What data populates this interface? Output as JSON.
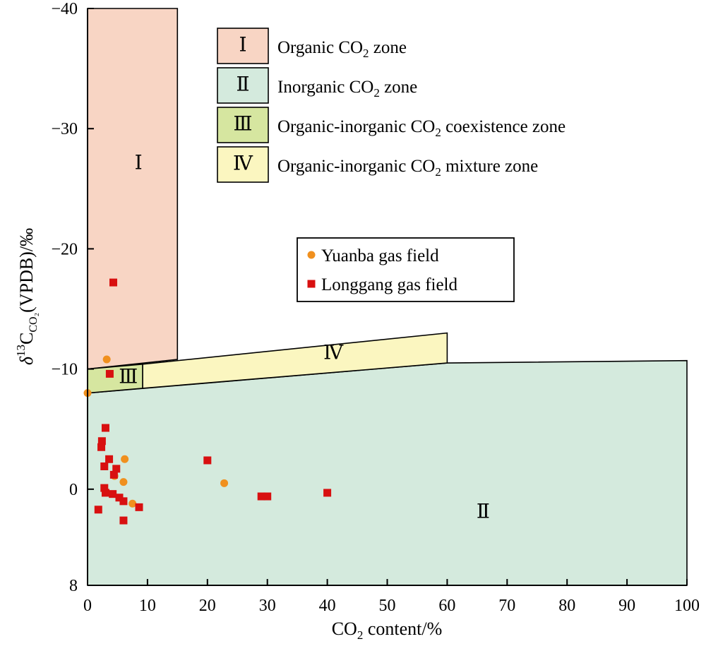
{
  "chart_data": {
    "type": "scatter",
    "xlabel": {
      "main": "CO",
      "sub": "2",
      "tail": " content/%"
    },
    "ylabel": {
      "delta": "δ",
      "sup": "13",
      "c": "C",
      "sub": "CO₂",
      "tail": "(VPDB)/‰"
    },
    "xlim": [
      0,
      100
    ],
    "ylim": [
      8,
      -40
    ],
    "y_inverted": true,
    "x_ticks": [
      0,
      10,
      20,
      30,
      40,
      50,
      60,
      70,
      80,
      90,
      100
    ],
    "y_ticks": [
      {
        "value": -40,
        "label": "−40"
      },
      {
        "value": -30,
        "label": "−30"
      },
      {
        "value": -20,
        "label": "−20"
      },
      {
        "value": -10,
        "label": "−10"
      },
      {
        "value": 0,
        "label": "0"
      },
      {
        "value": 8,
        "label": "8"
      }
    ],
    "zones": [
      {
        "id": "I",
        "label": "Ⅰ",
        "fill": "#f8d5c4",
        "polygon": [
          [
            0,
            -40
          ],
          [
            15,
            -40
          ],
          [
            15,
            -10.8
          ],
          [
            0,
            -10
          ]
        ],
        "label_at": [
          8.5,
          -27
        ]
      },
      {
        "id": "II",
        "label": "Ⅱ",
        "fill": "#d4eadd",
        "polygon": [
          [
            0,
            -8
          ],
          [
            60,
            -10.5
          ],
          [
            100,
            -10.7
          ],
          [
            100,
            8
          ],
          [
            0,
            8
          ]
        ],
        "label_at": [
          66,
          2
        ]
      },
      {
        "id": "III",
        "label": "Ⅲ",
        "fill": "#d6e6a0",
        "polygon": [
          [
            0,
            -10
          ],
          [
            9.2,
            -10.4
          ],
          [
            9.2,
            -8.4
          ],
          [
            0,
            -8
          ]
        ],
        "label_at": [
          6.8,
          -9.2
        ]
      },
      {
        "id": "IV",
        "label": "Ⅳ",
        "fill": "#fbf6c0",
        "polygon": [
          [
            9.2,
            -10.4
          ],
          [
            60,
            -13
          ],
          [
            60,
            -10.5
          ],
          [
            9.2,
            -8.4
          ]
        ],
        "label_at": [
          41,
          -11.2
        ]
      }
    ],
    "legend_zones": [
      {
        "numeral": "Ⅰ",
        "fill": "#f8d5c4",
        "text": "Organic CO",
        "sub": "2",
        "tail": " zone"
      },
      {
        "numeral": "Ⅱ",
        "fill": "#d4eadd",
        "text": "Inorganic CO",
        "sub": "2",
        "tail": " zone"
      },
      {
        "numeral": "Ⅲ",
        "fill": "#d6e6a0",
        "text": "Organic-inorganic CO",
        "sub": "2",
        "tail": " coexistence zone"
      },
      {
        "numeral": "Ⅳ",
        "fill": "#fbf6c0",
        "text": "Organic-inorganic CO",
        "sub": "2",
        "tail": " mixture zone"
      }
    ],
    "series": [
      {
        "name": "Yuanba gas field",
        "marker": "circle",
        "color": "#f0901e",
        "points": [
          [
            0,
            -8
          ],
          [
            3.2,
            -10.8
          ],
          [
            4.5,
            -1.1
          ],
          [
            6,
            -0.6
          ],
          [
            6.2,
            -2.5
          ],
          [
            7.5,
            1.2
          ],
          [
            22.8,
            -0.5
          ]
        ]
      },
      {
        "name": "Longgang gas field",
        "marker": "square",
        "color": "#d81010",
        "points": [
          [
            4.3,
            -17.2
          ],
          [
            3.7,
            -9.6
          ],
          [
            3,
            -5.1
          ],
          [
            2.4,
            -4
          ],
          [
            2.3,
            -3.5
          ],
          [
            2.8,
            -1.9
          ],
          [
            3.6,
            -2.5
          ],
          [
            4.8,
            -1.7
          ],
          [
            4.4,
            -1.2
          ],
          [
            2.8,
            -0.1
          ],
          [
            3,
            0.3
          ],
          [
            4.2,
            0.4
          ],
          [
            5.3,
            0.7
          ],
          [
            6,
            1
          ],
          [
            8.6,
            1.5
          ],
          [
            1.8,
            1.7
          ],
          [
            6,
            2.6
          ],
          [
            20,
            -2.4
          ],
          [
            29,
            0.6
          ],
          [
            30,
            0.6
          ],
          [
            40,
            0.3
          ]
        ]
      }
    ]
  }
}
